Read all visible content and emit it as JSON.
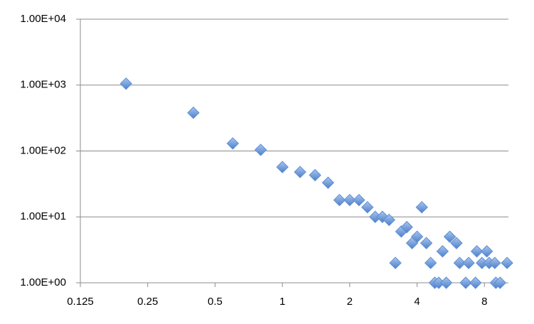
{
  "chart_data": {
    "type": "scatter",
    "x_log_base": 2,
    "y_log_base": 10,
    "xlim": [
      0.125,
      10.24
    ],
    "ylim": [
      1,
      10000
    ],
    "xticks": [
      0.125,
      0.25,
      0.5,
      1,
      2,
      4,
      8
    ],
    "yticks": [
      {
        "value": 1,
        "label": "1.00E+00"
      },
      {
        "value": 10,
        "label": "1.00E+01"
      },
      {
        "value": 100,
        "label": "1.00E+02"
      },
      {
        "value": 1000,
        "label": "1.00E+03"
      },
      {
        "value": 10000,
        "label": "1.00E+04"
      }
    ],
    "grid": true,
    "series": [
      {
        "color": "#5b8fd6",
        "x": [
          0.2,
          0.4,
          0.6,
          0.8,
          1.0,
          1.2,
          1.4,
          1.6,
          1.8,
          2.0,
          2.2,
          2.4,
          2.6,
          2.8,
          3.0,
          3.2,
          3.4,
          3.6,
          3.8,
          4.0,
          4.2,
          4.4,
          4.6,
          4.8,
          5.0,
          5.2,
          5.4,
          5.6,
          6.0,
          6.2,
          6.6,
          6.8,
          7.3,
          7.4,
          7.8,
          8.2,
          8.4,
          8.9,
          9.0,
          9.4,
          10.1
        ],
        "values": [
          1050,
          380,
          130,
          104,
          57,
          48,
          43,
          33,
          18,
          18,
          18,
          14,
          10,
          10,
          9,
          2,
          6,
          7,
          4,
          5,
          14,
          4,
          2,
          1,
          1,
          3,
          1,
          5,
          4,
          2,
          1,
          2,
          1,
          3,
          2,
          3,
          2,
          2,
          1,
          1,
          2
        ]
      }
    ]
  }
}
